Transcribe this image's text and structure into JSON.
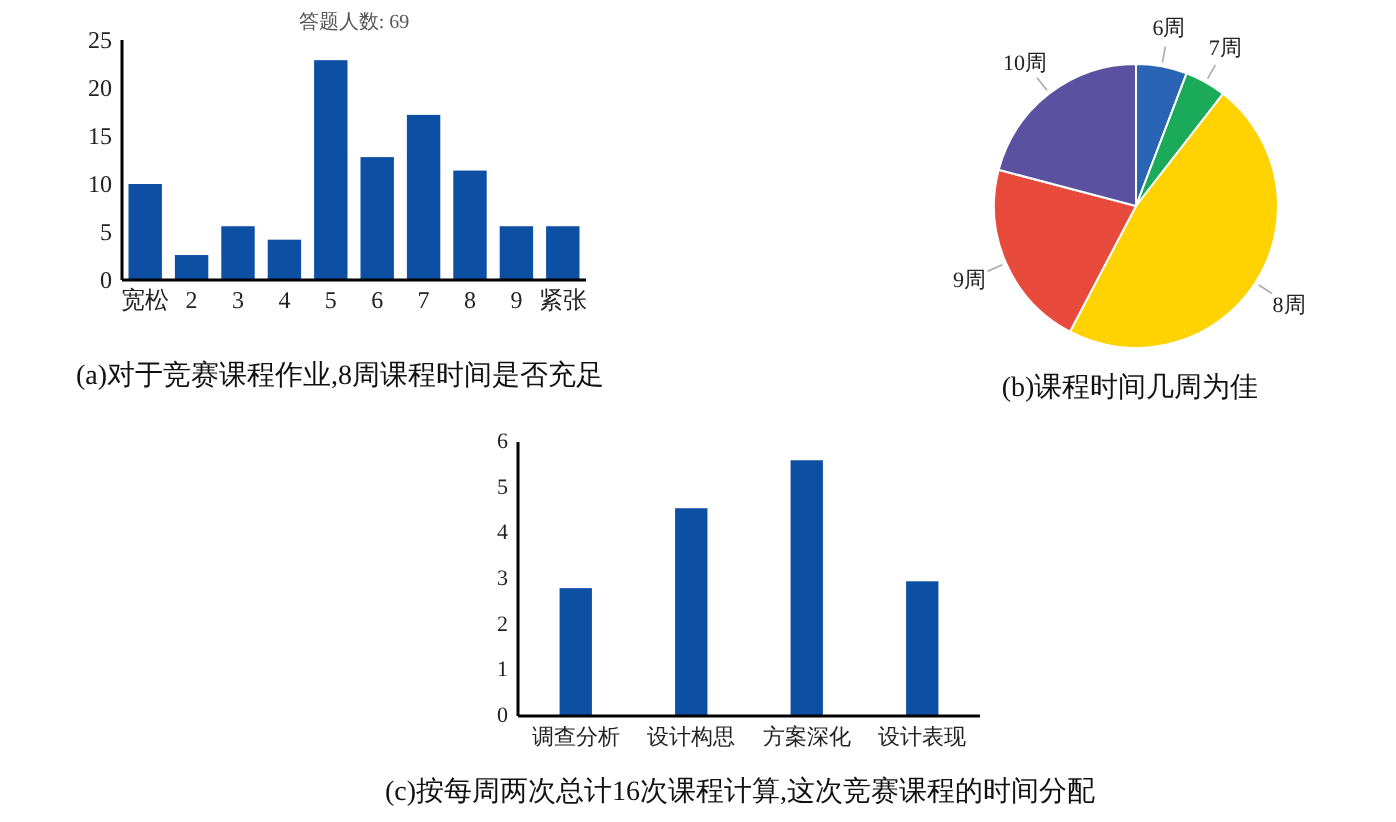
{
  "chart_data": [
    {
      "type": "bar",
      "title": "(a)对于竞赛课程作业,8周课程时间是否充足",
      "subtitle": "答题人数: 69",
      "categories": [
        "宽松",
        "2",
        "3",
        "4",
        "5",
        "6",
        "7",
        "8",
        "9",
        "紧张"
      ],
      "values": [
        10,
        2.6,
        5.6,
        4.2,
        22.9,
        12.8,
        17.2,
        11.4,
        5.6,
        5.6
      ],
      "color": "#0d4fa3",
      "ylim": [
        0,
        25
      ],
      "yticks": [
        0,
        5,
        10,
        15,
        20,
        25
      ]
    },
    {
      "type": "pie",
      "title": "(b)课程时间几周为佳",
      "categories": [
        "6周",
        "7周",
        "8周",
        "9周",
        "10周"
      ],
      "values": [
        5.8,
        4.7,
        47.2,
        21.4,
        20.9
      ],
      "colors": [
        "#2a64b4",
        "#1aaa5a",
        "#ffd200",
        "#e84a3c",
        "#5a52a0"
      ]
    },
    {
      "type": "bar",
      "title": "(c)按每周两次总计16次课程计算,这次竞赛课程的时间分配",
      "categories": [
        "调查分析",
        "设计构思",
        "方案深化",
        "设计表现"
      ],
      "values": [
        2.8,
        4.55,
        5.6,
        2.95
      ],
      "color": "#0d4fa3",
      "ylim": [
        0,
        6
      ],
      "yticks": [
        0,
        1,
        2,
        3,
        4,
        5,
        6
      ]
    }
  ]
}
